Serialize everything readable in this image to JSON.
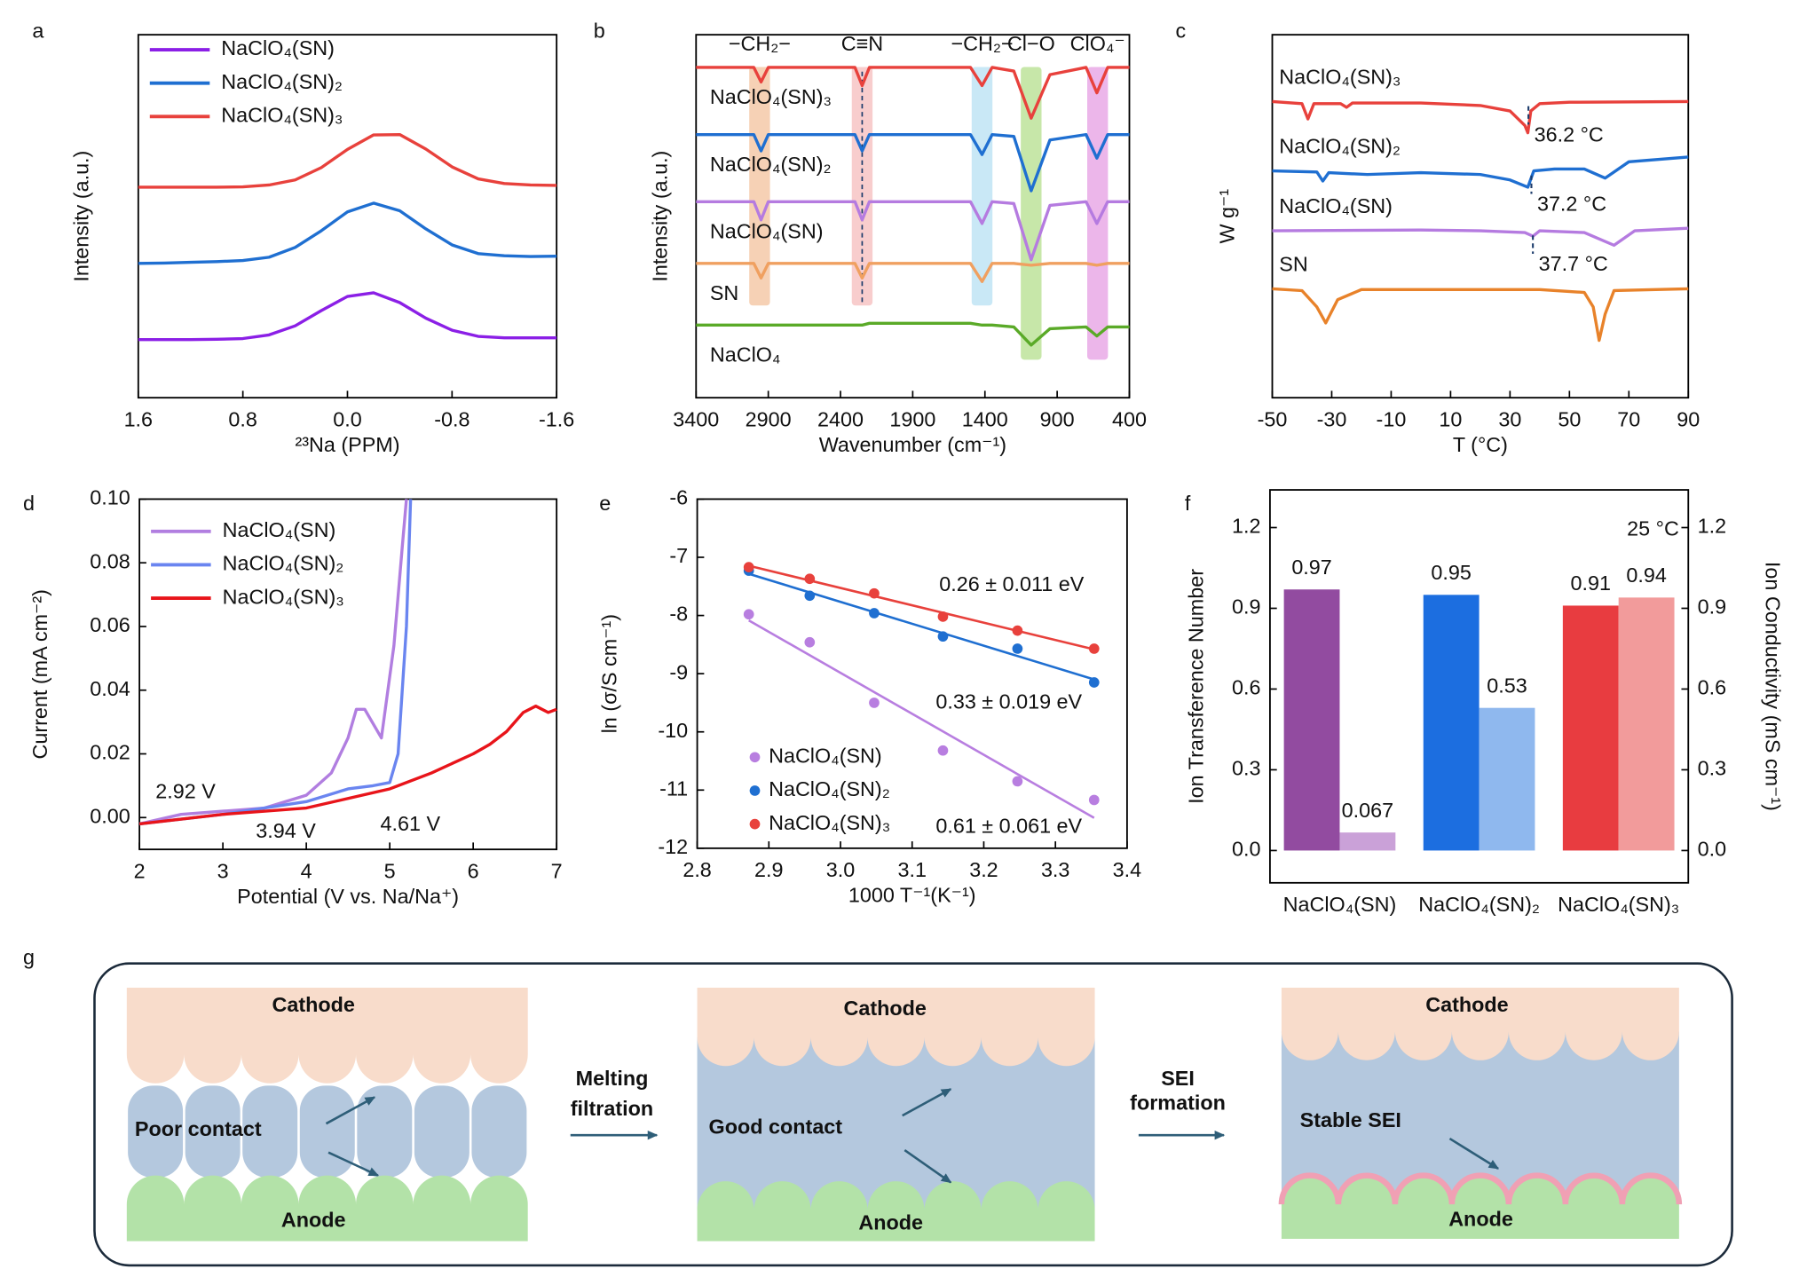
{
  "chart_data": [
    {
      "panel": "a",
      "type": "line",
      "x_label": "²³Na (PPM)",
      "y_label": "Intensity (a.u.)",
      "xlim": [
        1.6,
        -1.6
      ],
      "xticks": [
        1.6,
        0.8,
        {
          "value": 0,
          "label": "0.0"
        },
        -0.8,
        -1.6
      ],
      "ylim": [
        0,
        10
      ],
      "legend": "upper left",
      "x": [
        1.6,
        1.4,
        1.2,
        1.0,
        0.8,
        0.6,
        0.4,
        0.2,
        0,
        -0.2,
        -0.4,
        -0.6,
        -0.8,
        -1.0,
        -1.2,
        -1.4,
        -1.6
      ],
      "series": [
        {
          "name": "NaClO₄(SN)",
          "color": "#8b1fe6",
          "values": [
            1.6,
            1.6,
            1.6,
            1.61,
            1.63,
            1.73,
            1.98,
            2.4,
            2.79,
            2.89,
            2.62,
            2.19,
            1.86,
            1.69,
            1.65,
            1.65,
            1.65
          ]
        },
        {
          "name": "NaClO₄(SN)₂",
          "color": "#1f6fd1",
          "values": [
            3.7,
            3.71,
            3.73,
            3.75,
            3.78,
            3.87,
            4.14,
            4.6,
            5.12,
            5.36,
            5.15,
            4.65,
            4.21,
            3.97,
            3.91,
            3.89,
            3.9
          ]
        },
        {
          "name": "NaClO₄(SN)₃",
          "color": "#e8413c",
          "values": [
            5.8,
            5.8,
            5.8,
            5.8,
            5.81,
            5.86,
            6.0,
            6.34,
            6.84,
            7.24,
            7.25,
            6.85,
            6.36,
            6.03,
            5.9,
            5.86,
            5.85
          ]
        }
      ]
    },
    {
      "panel": "b",
      "type": "line",
      "x_label": "Wavenumber (cm⁻¹)",
      "y_label": "Intensity (a.u.)",
      "xlim": [
        3400,
        400
      ],
      "xticks": [
        3400,
        2900,
        2400,
        1900,
        1400,
        900,
        400
      ],
      "ylim": [
        0,
        10
      ],
      "labels": "inline",
      "bands": [
        {
          "label": "−CH₂−",
          "x": 2960,
          "color": "#f5c9a8",
          "label_color": "#ee8a4a"
        },
        {
          "label": "C≡N",
          "x": 2250,
          "color": "#f7c4c4",
          "label_color": "#e83c3c"
        },
        {
          "label": "−CH₂−",
          "x": 1420,
          "color": "#bfe4f5",
          "label_color": "#3fb3e8"
        },
        {
          "label": "Cl−O",
          "x": 1080,
          "color": "#bde39a",
          "label_color": "#5aaa28"
        },
        {
          "label": "ClO₄⁻",
          "x": 620,
          "color": "#e9a9e6",
          "label_color": "#a24ca8"
        }
      ],
      "x": [
        3400,
        3000,
        2950,
        2900,
        2300,
        2250,
        2200,
        1500,
        1420,
        1350,
        1200,
        1080,
        950,
        700,
        625,
        550,
        400
      ],
      "series": [
        {
          "name": "NaClO₄(SN)₃",
          "color": "#e8413c",
          "values": [
            9.1,
            9.1,
            8.7,
            9.1,
            9.1,
            8.6,
            9.1,
            9.1,
            8.6,
            9.1,
            9.0,
            7.7,
            8.9,
            9.1,
            8.4,
            9.1,
            9.1
          ]
        },
        {
          "name": "NaClO₄(SN)₂",
          "color": "#1f6fd1",
          "values": [
            7.25,
            7.25,
            6.8,
            7.25,
            7.25,
            6.8,
            7.25,
            7.25,
            6.7,
            7.25,
            7.2,
            5.7,
            7.1,
            7.25,
            6.6,
            7.25,
            7.25
          ]
        },
        {
          "name": "NaClO₄(SN)",
          "color": "#b57be0",
          "values": [
            5.4,
            5.4,
            4.9,
            5.4,
            5.4,
            4.9,
            5.4,
            5.4,
            4.8,
            5.4,
            5.35,
            3.8,
            5.3,
            5.4,
            4.8,
            5.4,
            5.4
          ]
        },
        {
          "name": "SN",
          "color": "#f0a060",
          "values": [
            3.7,
            3.7,
            3.3,
            3.7,
            3.7,
            3.3,
            3.7,
            3.7,
            3.2,
            3.7,
            3.7,
            3.65,
            3.7,
            3.7,
            3.65,
            3.7,
            3.7
          ]
        },
        {
          "name": "NaClO₄",
          "color": "#5aaa28",
          "values": [
            2.0,
            2.0,
            2.0,
            2.0,
            2.0,
            2.0,
            2.05,
            2.05,
            2.0,
            2.0,
            1.95,
            1.45,
            1.9,
            1.95,
            1.7,
            1.95,
            1.95
          ]
        }
      ]
    },
    {
      "panel": "c",
      "type": "line",
      "x_label": "T (°C)",
      "y_label": "W g⁻¹",
      "xlim": [
        -50,
        90
      ],
      "xticks": [
        -50,
        -30,
        -10,
        10,
        30,
        50,
        70,
        90
      ],
      "ylim": [
        0,
        10
      ],
      "labels": "inline",
      "series": [
        {
          "name": "NaClO₄(SN)₃",
          "color": "#e8413c",
          "x": [
            -50,
            -40,
            -38,
            -36,
            -27,
            -25,
            -23,
            0,
            20,
            30,
            35,
            36,
            37,
            40,
            50,
            90
          ],
          "values": [
            8.16,
            8.1,
            7.68,
            8.1,
            8.1,
            8.0,
            8.12,
            8.12,
            8.05,
            7.9,
            7.5,
            7.3,
            7.9,
            8.1,
            8.14,
            8.16
          ]
        },
        {
          "name": "NaClO₄(SN)₂",
          "color": "#1f6fd1",
          "x": [
            -50,
            -35,
            -33,
            -31,
            -18,
            0,
            20,
            30,
            36,
            38,
            45,
            55,
            62,
            70,
            90
          ],
          "values": [
            6.25,
            6.22,
            5.97,
            6.2,
            6.15,
            6.2,
            6.15,
            6.0,
            5.8,
            6.25,
            6.3,
            6.3,
            6.05,
            6.5,
            6.63
          ]
        },
        {
          "name": "NaClO₄(SN)",
          "color": "#b57be0",
          "x": [
            -50,
            0,
            20,
            35,
            37.7,
            40,
            55,
            65,
            72,
            90
          ],
          "values": [
            4.6,
            4.62,
            4.6,
            4.55,
            4.45,
            4.6,
            4.55,
            4.2,
            4.6,
            4.67
          ]
        },
        {
          "name": "SN",
          "color": "#e8822a",
          "x": [
            -50,
            -40,
            -35,
            -32,
            -28,
            -20,
            40,
            55,
            58,
            60,
            62,
            65,
            90
          ],
          "values": [
            3.0,
            2.95,
            2.5,
            2.06,
            2.7,
            2.98,
            2.98,
            2.9,
            2.5,
            1.58,
            2.3,
            2.95,
            3.0
          ]
        }
      ],
      "annotations": [
        {
          "text": "36.2 °C",
          "x": 36.2
        },
        {
          "text": "37.2 °C",
          "x": 37.2
        },
        {
          "text": "37.7 °C",
          "x": 37.7
        }
      ]
    },
    {
      "panel": "d",
      "type": "line",
      "x_label": "Potential (V vs. Na/Na⁺)",
      "y_label": "Current (mA cm⁻²)",
      "xlim": [
        2,
        7
      ],
      "xticks": [
        2,
        3,
        4,
        5,
        6,
        7
      ],
      "ylim": [
        -0.01,
        0.1
      ],
      "yticks": [
        {
          "value": 0,
          "label": "0.00"
        },
        0.02,
        0.04,
        0.06,
        0.08,
        {
          "value": 0.1,
          "label": "0.10"
        }
      ],
      "legend": "upper left",
      "series": [
        {
          "name": "NaClO₄(SN)",
          "color": "#b17ee0",
          "x": [
            2,
            2.5,
            3,
            3.5,
            4,
            4.3,
            4.5,
            4.6,
            4.7,
            4.9,
            5.05,
            5.15,
            5.2
          ],
          "values": [
            -0.002,
            0.001,
            0.002,
            0.003,
            0.007,
            0.014,
            0.025,
            0.034,
            0.034,
            0.025,
            0.054,
            0.085,
            0.1
          ]
        },
        {
          "name": "NaClO₄(SN)₂",
          "color": "#6a85f0",
          "x": [
            2,
            3,
            4,
            4.5,
            4.8,
            5,
            5.1,
            5.2,
            5.25
          ],
          "values": [
            -0.002,
            0.001,
            0.005,
            0.009,
            0.01,
            0.011,
            0.02,
            0.06,
            0.1
          ]
        },
        {
          "name": "NaClO₄(SN)₃",
          "color": "#e8141a",
          "x": [
            2,
            3,
            4,
            4.5,
            5,
            5.5,
            6,
            6.2,
            6.4,
            6.6,
            6.75,
            6.9,
            7
          ],
          "values": [
            -0.002,
            0.001,
            0.003,
            0.006,
            0.009,
            0.014,
            0.02,
            0.023,
            0.027,
            0.033,
            0.035,
            0.033,
            0.034
          ]
        }
      ],
      "annotations": [
        {
          "text": "2.92 V",
          "color": "#b17ee0"
        },
        {
          "text": "3.94 V",
          "color": "#6a85f0"
        },
        {
          "text": "4.61 V",
          "color": "#e8141a"
        }
      ]
    },
    {
      "panel": "e",
      "type": "scatter",
      "x_label": "1000 T⁻¹(K⁻¹)",
      "y_label": "ln (σ/S cm⁻¹)",
      "fit": "linear",
      "xlim": [
        2.8,
        3.4
      ],
      "xticks": [
        2.8,
        2.9,
        {
          "value": 3,
          "label": "3.0"
        },
        3.1,
        3.2,
        3.3,
        3.4
      ],
      "ylim": [
        -12,
        -6
      ],
      "yticks": [
        -6,
        -7,
        -8,
        -9,
        -10,
        -11,
        -12
      ],
      "legend": "lower left",
      "x": [
        2.872,
        2.957,
        3.047,
        3.143,
        3.247,
        3.354
      ],
      "series": [
        {
          "name": "NaClO₄(SN)",
          "color": "#b87ee0",
          "values": [
            -7.98,
            -8.46,
            -9.5,
            -10.32,
            -10.85,
            -11.17
          ],
          "label": "0.61 ± 0.061 eV"
        },
        {
          "name": "NaClO₄(SN)₂",
          "color": "#1f6fd1",
          "values": [
            -7.23,
            -7.66,
            -7.96,
            -8.36,
            -8.57,
            -9.15
          ],
          "label": "0.33 ± 0.019 eV"
        },
        {
          "name": "NaClO₄(SN)₃",
          "color": "#e8413c",
          "values": [
            -7.17,
            -7.37,
            -7.62,
            -8.02,
            -8.26,
            -8.57
          ],
          "label": "0.26 ± 0.011 eV"
        }
      ]
    },
    {
      "panel": "f",
      "type": "bar",
      "y_label": "Ion Transference Number",
      "y2_label": "Ion Conductivity (mS cm⁻¹)",
      "categories": [
        "NaClO₄(SN)",
        "NaClO₄(SN)₂",
        "NaClO₄(SN)₃"
      ],
      "ylim": [
        -0.12,
        1.34
      ],
      "yticks": [
        {
          "value": 0,
          "label": "0.0"
        },
        0.3,
        0.6,
        0.9,
        1.2
      ],
      "y2lim": [
        -0.12,
        1.34
      ],
      "y2ticks": [
        {
          "value": 0,
          "label": "0.0"
        },
        0.3,
        0.6,
        0.9,
        1.2
      ],
      "series": [
        {
          "values": [
            0.97,
            0.95,
            0.91
          ],
          "colors": [
            "#924ba0",
            "#1c6ee0",
            "#e83c40"
          ]
        },
        {
          "values": [
            0.067,
            0.53,
            0.94
          ],
          "colors": [
            "#caa1d8",
            "#8fb8ee",
            "#f29b9b"
          ],
          "axis": "y2"
        }
      ],
      "annotation": "25 °C"
    }
  ],
  "diagram": {
    "panel": "g",
    "stages": [
      {
        "cathode": "Cathode",
        "middle": "Poor contact",
        "anode": "Anode"
      },
      {
        "cathode": "Cathode",
        "middle": "Good contact",
        "anode": "Anode"
      },
      {
        "cathode": "Cathode",
        "middle": "Stable SEI",
        "anode": "Anode"
      }
    ],
    "steps": [
      [
        "Melting",
        "filtration"
      ],
      [
        "SEI",
        "formation"
      ]
    ]
  }
}
